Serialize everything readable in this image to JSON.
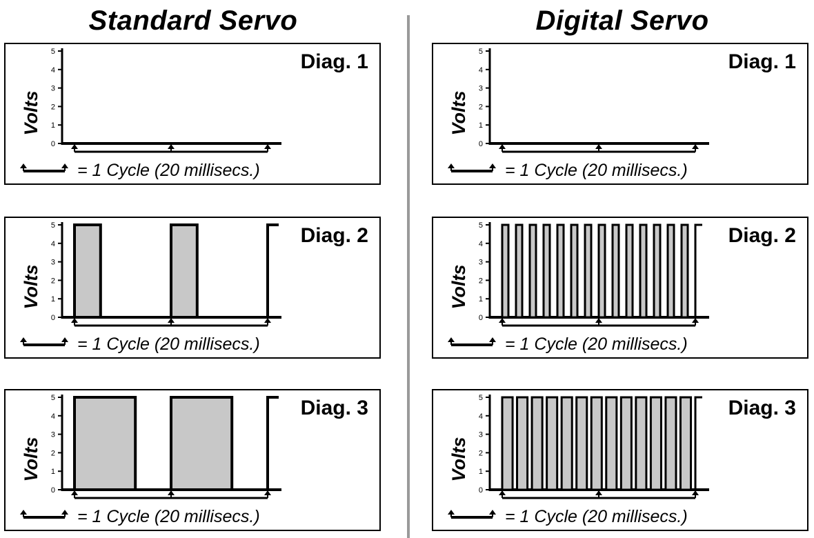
{
  "titles": {
    "left": "Standard Servo",
    "right": "Digital Servo"
  },
  "axis_label": "Volts",
  "cycle_text": "= 1 Cycle (20 millisecs.)",
  "y_ticks": [
    "0",
    "1",
    "2",
    "3",
    "4",
    "5"
  ],
  "colors": {
    "pulse_fill": "#c8c8c8",
    "line": "#000000",
    "divider": "#9a9a9a"
  },
  "icons": {
    "legend": "double-arrow-icon"
  },
  "panels": [
    {
      "id": "std-1",
      "column": "left",
      "label": "Diag. 1",
      "pulse_count": 0,
      "duty_fraction": 0.0
    },
    {
      "id": "std-2",
      "column": "left",
      "label": "Diag. 2",
      "pulse_count": 2,
      "duty_fraction": 0.27
    },
    {
      "id": "std-3",
      "column": "left",
      "label": "Diag. 3",
      "pulse_count": 2,
      "duty_fraction": 0.63
    },
    {
      "id": "dig-1",
      "column": "right",
      "label": "Diag. 1",
      "pulse_count": 0,
      "duty_fraction": 0.0
    },
    {
      "id": "dig-2",
      "column": "right",
      "label": "Diag. 2",
      "pulse_count": 14,
      "duty_fraction": 0.45
    },
    {
      "id": "dig-3",
      "column": "right",
      "label": "Diag. 3",
      "pulse_count": 13,
      "duty_fraction": 0.7
    }
  ]
}
